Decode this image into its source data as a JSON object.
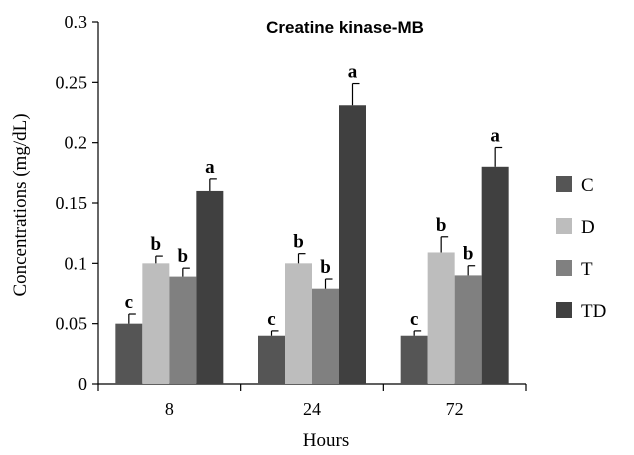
{
  "chart_data": {
    "type": "bar",
    "title": "Creatine kinase-MB",
    "xlabel": "Hours",
    "ylabel": "Concentrations (mg/dL)",
    "ylim": [
      0,
      0.3
    ],
    "yticks": [
      "0",
      "0.05",
      "0.1",
      "0.15",
      "0.2",
      "0.25",
      "0.3"
    ],
    "categories": [
      "8",
      "24",
      "72"
    ],
    "legend_position": "right",
    "grid": false,
    "series": [
      {
        "name": "C",
        "color": "#555555",
        "values": [
          0.05,
          0.04,
          0.04
        ],
        "errors": [
          0.008,
          0.004,
          0.004
        ],
        "labels": [
          "c",
          "c",
          "c"
        ]
      },
      {
        "name": "D",
        "color": "#bdbdbd",
        "values": [
          0.1,
          0.1,
          0.109
        ],
        "errors": [
          0.006,
          0.008,
          0.013
        ],
        "labels": [
          "b",
          "b",
          "b"
        ]
      },
      {
        "name": "T",
        "color": "#808080",
        "values": [
          0.089,
          0.079,
          0.09
        ],
        "errors": [
          0.007,
          0.008,
          0.008
        ],
        "labels": [
          "b",
          "b",
          "b"
        ]
      },
      {
        "name": "TD",
        "color": "#404040",
        "values": [
          0.16,
          0.231,
          0.18
        ],
        "errors": [
          0.01,
          0.018,
          0.016
        ],
        "labels": [
          "a",
          "a",
          "a"
        ]
      }
    ]
  }
}
